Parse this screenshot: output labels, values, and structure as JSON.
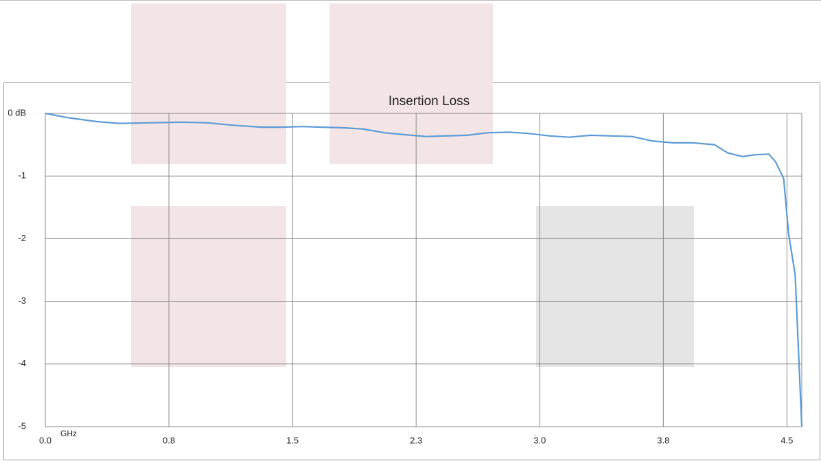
{
  "chart_data": {
    "type": "line",
    "title": "Insertion Loss",
    "x_label": "GHz",
    "x": [
      0,
      0.14,
      0.31,
      0.45,
      0.64,
      0.82,
      0.98,
      1.14,
      1.31,
      1.43,
      1.56,
      1.68,
      1.81,
      1.93,
      2.06,
      2.18,
      2.31,
      2.43,
      2.56,
      2.68,
      2.81,
      2.93,
      3.06,
      3.18,
      3.31,
      3.43,
      3.56,
      3.68,
      3.81,
      3.93,
      4.06,
      4.14,
      4.23,
      4.31,
      4.39,
      4.43,
      4.48,
      4.51,
      4.55,
      4.59
    ],
    "series": [
      {
        "name": "Insertion Loss",
        "color": "#5b9bd5",
        "values": [
          0,
          -0.07,
          -0.13,
          -0.16,
          -0.15,
          -0.14,
          -0.15,
          -0.19,
          -0.22,
          -0.22,
          -0.21,
          -0.22,
          -0.23,
          -0.25,
          -0.31,
          -0.34,
          -0.37,
          -0.36,
          -0.35,
          -0.31,
          -0.3,
          -0.32,
          -0.36,
          -0.38,
          -0.35,
          -0.36,
          -0.37,
          -0.44,
          -0.47,
          -0.47,
          -0.5,
          -0.63,
          -0.69,
          -0.66,
          -0.65,
          -0.77,
          -1.04,
          -1.92,
          -2.58,
          -5
        ]
      }
    ],
    "xlim": [
      0,
      4.59
    ],
    "xticks": [
      {
        "value": 0,
        "label": "0.0"
      },
      {
        "value": 0.75,
        "label": "0.8"
      },
      1.5,
      {
        "value": 2.25,
        "label": "2.3"
      },
      {
        "value": 3,
        "label": "3.0"
      },
      {
        "value": 3.75,
        "label": "3.8"
      },
      4.5
    ],
    "ylim": [
      -5,
      0
    ],
    "yticks": [
      {
        "value": 0,
        "label": "0 dB"
      },
      -1,
      -2,
      -3,
      -4,
      -5
    ],
    "grid": true
  }
}
